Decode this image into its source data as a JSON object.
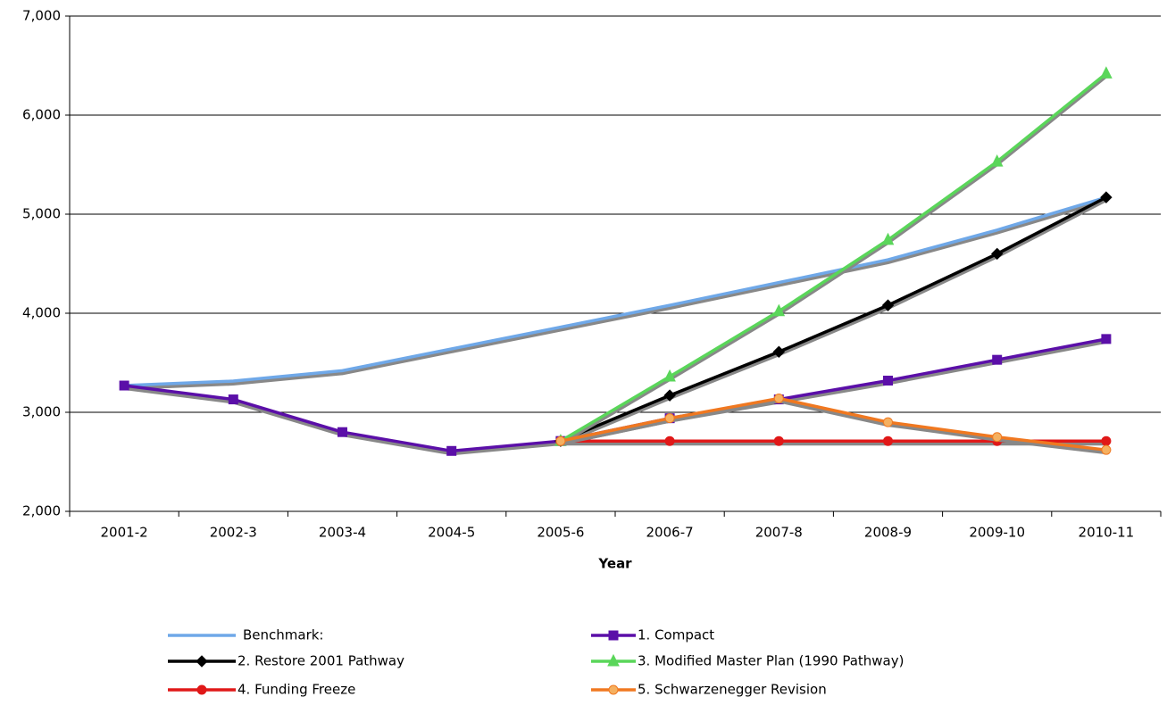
{
  "chart_data": {
    "type": "line",
    "xlabel": "Year",
    "categories": [
      "2001-2",
      "2002-3",
      "2003-4",
      "2004-5",
      "2005-6",
      "2006-7",
      "2007-8",
      "2008-9",
      "2009-10",
      "2010-11"
    ],
    "ylim": [
      2000,
      7000
    ],
    "yticks": [
      {
        "value": 2000,
        "label": "2,000"
      },
      {
        "value": 3000,
        "label": "3,000"
      },
      {
        "value": 4000,
        "label": "4,000"
      },
      {
        "value": 5000,
        "label": "5,000"
      },
      {
        "value": 6000,
        "label": "6,000"
      },
      {
        "value": 7000,
        "label": "7,000"
      }
    ],
    "grid": true,
    "series": [
      {
        "name": "Benchmark:",
        "color": "#6fa8e8",
        "marker": "none",
        "values": [
          3270,
          3315,
          3420,
          3640,
          3860,
          4080,
          4310,
          4540,
          4840,
          5170
        ]
      },
      {
        "name": "1. Compact",
        "color": "#5b0fa8",
        "marker": "square",
        "values": [
          3270,
          3130,
          2800,
          2610,
          2710,
          2940,
          3130,
          3320,
          3530,
          3740
        ]
      },
      {
        "name": "2. Restore 2001 Pathway",
        "color": "#000000",
        "marker": "diamond",
        "values": [
          null,
          null,
          null,
          null,
          2710,
          3170,
          3610,
          4080,
          4600,
          5170
        ]
      },
      {
        "name": "3. Modified Master Plan (1990 Pathway)",
        "color": "#5ad65a",
        "marker": "triangle",
        "values": [
          null,
          null,
          null,
          null,
          2710,
          3360,
          4020,
          4740,
          5530,
          6420
        ]
      },
      {
        "name": "4. Funding Freeze",
        "color": "#e01818",
        "marker": "circle",
        "values": [
          null,
          null,
          null,
          null,
          2710,
          2710,
          2710,
          2710,
          2710,
          2710
        ]
      },
      {
        "name": "5. Schwarzenegger Revision",
        "color": "#f07820",
        "marker": "circle",
        "markerFill": "#f5b060",
        "values": [
          null,
          null,
          null,
          null,
          2710,
          2940,
          3140,
          2900,
          2750,
          2620
        ]
      }
    ]
  }
}
